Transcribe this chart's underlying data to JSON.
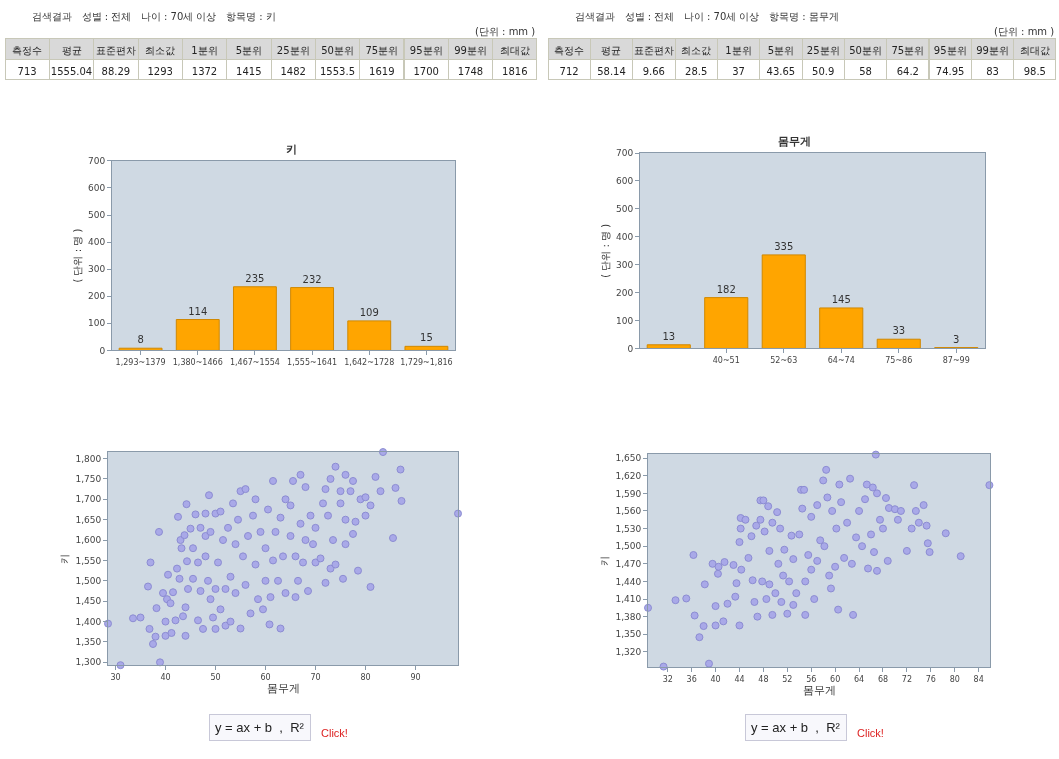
{
  "chart_data": [
    {
      "type": "other",
      "title": "검색결과   성별 : 전체   나이 : 70세 이상   항목명 : 키",
      "subtitle": "(단위 : mm )",
      "categories": [
        "측정수",
        "평균",
        "표준편차",
        "최소값",
        "1분위",
        "5분위",
        "25분위",
        "50분위",
        "75분위",
        "95분위",
        "99분위",
        "최대값"
      ],
      "values": [
        713,
        1555.04,
        88.29,
        1293,
        1372,
        1415,
        1482,
        1553.5,
        1619,
        1700,
        1748,
        1816
      ],
      "data_labels": true
    },
    {
      "type": "other",
      "title": "검색결과   성별 : 전체   나이 : 70세 이상   항목명 : 몸무게",
      "subtitle": "(단위 : mm )",
      "categories": [
        "측정수",
        "평균",
        "표준편차",
        "최소값",
        "1분위",
        "5분위",
        "25분위",
        "50분위",
        "75분위",
        "95분위",
        "99분위",
        "최대값"
      ],
      "values": [
        712,
        58.14,
        9.66,
        28.5,
        37,
        43.65,
        50.9,
        58,
        64.2,
        74.95,
        83,
        98.5
      ],
      "data_labels": true
    },
    {
      "type": "bar",
      "title": "키",
      "ylabel": "( 단위 : 명 )",
      "categories": [
        "1,293~1379",
        "1,380~1466",
        "1,467~1554",
        "1,555~1641",
        "1,642~1728",
        "1,729~1,816"
      ],
      "values": [
        8,
        114,
        235,
        232,
        109,
        15
      ],
      "color": "#ffa500",
      "ylim": [
        0,
        700
      ],
      "yticks": [
        0,
        100,
        200,
        300,
        400,
        500,
        600,
        700
      ],
      "data_labels": true
    },
    {
      "type": "bar",
      "title": "몸무게",
      "ylabel": "( 단위 : 명 )",
      "categories": [
        null,
        "40~51",
        "52~63",
        "64~74",
        "75~86",
        "87~99"
      ],
      "values": [
        13,
        182,
        335,
        145,
        33,
        3
      ],
      "color": "#ffa500",
      "ylim": [
        0,
        700
      ],
      "yticks": [
        0,
        100,
        200,
        300,
        400,
        500,
        600,
        700
      ],
      "data_labels": true
    },
    {
      "type": "scatter",
      "xlabel": "몸무게",
      "ylabel": "키",
      "color": "#a9a9e8",
      "marker": "circle",
      "xlim": [
        28.5,
        98.5
      ],
      "ylim": [
        1293,
        1816
      ],
      "xticks": [
        30,
        40,
        50,
        60,
        70,
        80,
        90
      ],
      "yticks": [
        {
          "value": 1300,
          "label": "1,300"
        },
        {
          "value": 1350,
          "label": "1,350"
        },
        {
          "value": 1400,
          "label": "1,400"
        },
        {
          "value": 1450,
          "label": "1,450"
        },
        {
          "value": 1500,
          "label": "1,500"
        },
        {
          "value": 1550,
          "label": "1,550"
        },
        {
          "value": 1600,
          "label": "1,600"
        },
        {
          "value": 1650,
          "label": "1,650"
        },
        {
          "value": 1700,
          "label": "1,700"
        },
        {
          "value": 1750,
          "label": "1,750"
        },
        {
          "value": 1800,
          "label": "1,800"
        }
      ],
      "x": [
        28.5,
        31,
        33.5,
        35,
        36.5,
        36.8,
        37,
        37.5,
        38,
        38.2,
        38.7,
        38.9,
        39.5,
        40,
        40,
        40.5,
        40.3,
        41,
        41.2,
        41.5,
        42,
        42.3,
        42.5,
        42.8,
        43,
        43.2,
        43.5,
        43.8,
        44,
        44,
        44.2,
        44.3,
        44.5,
        45,
        45.5,
        45.5,
        46,
        46.5,
        46.5,
        47,
        47,
        47.5,
        48,
        48,
        48,
        48.5,
        48.7,
        49,
        49,
        49.5,
        50,
        50,
        50,
        50.5,
        51,
        51,
        51.5,
        52,
        52,
        52.5,
        53,
        53,
        53.5,
        54,
        54,
        54.5,
        55,
        55,
        55.5,
        56,
        56,
        56.5,
        57,
        57.5,
        58,
        58,
        58.5,
        59,
        59.5,
        60,
        60,
        60.5,
        60.8,
        61,
        61.5,
        61.5,
        62,
        62.5,
        63,
        63,
        63.5,
        64,
        64,
        65,
        65,
        65.5,
        66,
        66,
        66.5,
        67,
        67,
        67.5,
        68,
        68,
        68.5,
        69,
        69.5,
        70,
        70,
        71,
        71.5,
        72,
        72,
        72.5,
        73,
        73,
        73.5,
        74,
        74,
        75,
        75,
        75.5,
        76,
        76,
        76,
        77,
        77.5,
        77.5,
        78,
        78.5,
        79,
        80,
        80,
        81,
        81,
        82,
        83,
        83.5,
        85.5,
        86,
        87,
        87.2,
        98.5
      ],
      "values": [
        1395,
        1293,
        1408,
        1410,
        1486,
        1382,
        1545,
        1345,
        1363,
        1433,
        1620,
        1300,
        1470,
        1365,
        1400,
        1515,
        1455,
        1445,
        1372,
        1472,
        1403,
        1530,
        1657,
        1505,
        1600,
        1580,
        1413,
        1612,
        1435,
        1365,
        1688,
        1548,
        1480,
        1628,
        1580,
        1505,
        1663,
        1545,
        1403,
        1630,
        1475,
        1382,
        1665,
        1610,
        1560,
        1500,
        1710,
        1455,
        1620,
        1410,
        1665,
        1480,
        1382,
        1545,
        1670,
        1430,
        1600,
        1480,
        1390,
        1630,
        1510,
        1400,
        1690,
        1590,
        1470,
        1650,
        1720,
        1383,
        1560,
        1725,
        1490,
        1610,
        1420,
        1660,
        1700,
        1540,
        1455,
        1620,
        1430,
        1580,
        1500,
        1675,
        1393,
        1460,
        1745,
        1550,
        1620,
        1500,
        1383,
        1655,
        1560,
        1700,
        1470,
        1610,
        1685,
        1745,
        1560,
        1460,
        1500,
        1760,
        1640,
        1545,
        1730,
        1600,
        1475,
        1660,
        1590,
        1630,
        1545,
        1555,
        1690,
        1495,
        1725,
        1660,
        1750,
        1530,
        1600,
        1780,
        1540,
        1720,
        1690,
        1505,
        1760,
        1590,
        1650,
        1720,
        1615,
        1745,
        1645,
        1525,
        1700,
        1705,
        1660,
        1485,
        1685,
        1755,
        1720,
        1816,
        1605,
        1728,
        1773,
        1696,
        1665
      ],
      "annotations": [
        "y = ax + b  ,  R²",
        "Click!"
      ]
    },
    {
      "type": "scatter",
      "xlabel": "몸무게",
      "ylabel": "키",
      "color": "#a9a9e8",
      "marker": "circle",
      "xlim": [
        28.7,
        85.9
      ],
      "ylim": [
        1294,
        1657
      ],
      "xticks": [
        32,
        36,
        40,
        44,
        48,
        52,
        56,
        60,
        64,
        68,
        72,
        76,
        80,
        84
      ],
      "yticks": [
        {
          "value": 1320,
          "label": "1,320"
        },
        {
          "value": 1350,
          "label": "1,350"
        },
        {
          "value": 1380,
          "label": "1,380"
        },
        {
          "value": 1410,
          "label": "1,410"
        },
        {
          "value": 1440,
          "label": "1,440"
        },
        {
          "value": 1470,
          "label": "1,470"
        },
        {
          "value": 1500,
          "label": "1,500"
        },
        {
          "value": 1530,
          "label": "1,530"
        },
        {
          "value": 1560,
          "label": "1,560"
        },
        {
          "value": 1590,
          "label": "1,590"
        },
        {
          "value": 1620,
          "label": "1,620"
        },
        {
          "value": 1650,
          "label": "1,650"
        }
      ],
      "x": [
        28.7,
        31.3,
        33.3,
        35.1,
        36.3,
        36.5,
        37.3,
        38,
        38.2,
        38.9,
        39.5,
        40,
        40,
        40.4,
        40.5,
        41.3,
        41.5,
        42,
        43,
        43.3,
        43.5,
        44,
        44,
        44.2,
        44.2,
        44.3,
        45,
        45.5,
        46,
        46.2,
        46.5,
        46.8,
        47,
        47.5,
        47.5,
        47.8,
        48,
        48.2,
        48.5,
        48.8,
        49,
        49,
        49.5,
        49.5,
        50,
        50.3,
        50.5,
        50.8,
        51,
        51.3,
        51.5,
        52,
        52.3,
        52.7,
        53,
        53,
        53.5,
        54,
        54.3,
        54.5,
        54.8,
        55,
        55,
        55.5,
        56,
        56,
        56.5,
        57,
        57,
        57.5,
        58,
        58.2,
        58.5,
        58.7,
        59,
        59.3,
        59.5,
        60,
        60.2,
        60.5,
        60.7,
        61,
        61.5,
        62,
        62.5,
        62.8,
        63,
        63.5,
        64,
        64.5,
        65,
        65.3,
        65.5,
        66,
        66.3,
        66.5,
        66.8,
        67,
        67,
        67.5,
        68,
        68.5,
        68.8,
        69,
        70,
        70.5,
        71,
        72,
        72.8,
        73.2,
        73.5,
        74,
        74.8,
        75.3,
        75.5,
        75.8,
        78.5,
        81,
        85.8
      ],
      "values": [
        1395,
        1295,
        1408,
        1411,
        1485,
        1382,
        1345,
        1364,
        1435,
        1300,
        1470,
        1398,
        1365,
        1453,
        1465,
        1372,
        1473,
        1402,
        1468,
        1414,
        1437,
        1507,
        1365,
        1548,
        1530,
        1460,
        1545,
        1480,
        1517,
        1442,
        1405,
        1535,
        1380,
        1578,
        1545,
        1440,
        1578,
        1525,
        1410,
        1568,
        1492,
        1435,
        1383,
        1540,
        1420,
        1558,
        1470,
        1530,
        1405,
        1450,
        1494,
        1385,
        1440,
        1518,
        1400,
        1478,
        1420,
        1520,
        1596,
        1564,
        1596,
        1383,
        1440,
        1485,
        1550,
        1460,
        1410,
        1475,
        1570,
        1510,
        1612,
        1500,
        1630,
        1583,
        1450,
        1428,
        1560,
        1465,
        1530,
        1392,
        1605,
        1575,
        1480,
        1540,
        1615,
        1470,
        1383,
        1515,
        1560,
        1500,
        1580,
        1605,
        1462,
        1520,
        1600,
        1490,
        1656,
        1590,
        1458,
        1545,
        1530,
        1582,
        1475,
        1565,
        1563,
        1545,
        1560,
        1492,
        1530,
        1604,
        1560,
        1540,
        1570,
        1535,
        1505,
        1490,
        1522,
        1483,
        1604
      ],
      "annotations": [
        "y = ax + b  ,  R²",
        "Click!"
      ]
    }
  ]
}
